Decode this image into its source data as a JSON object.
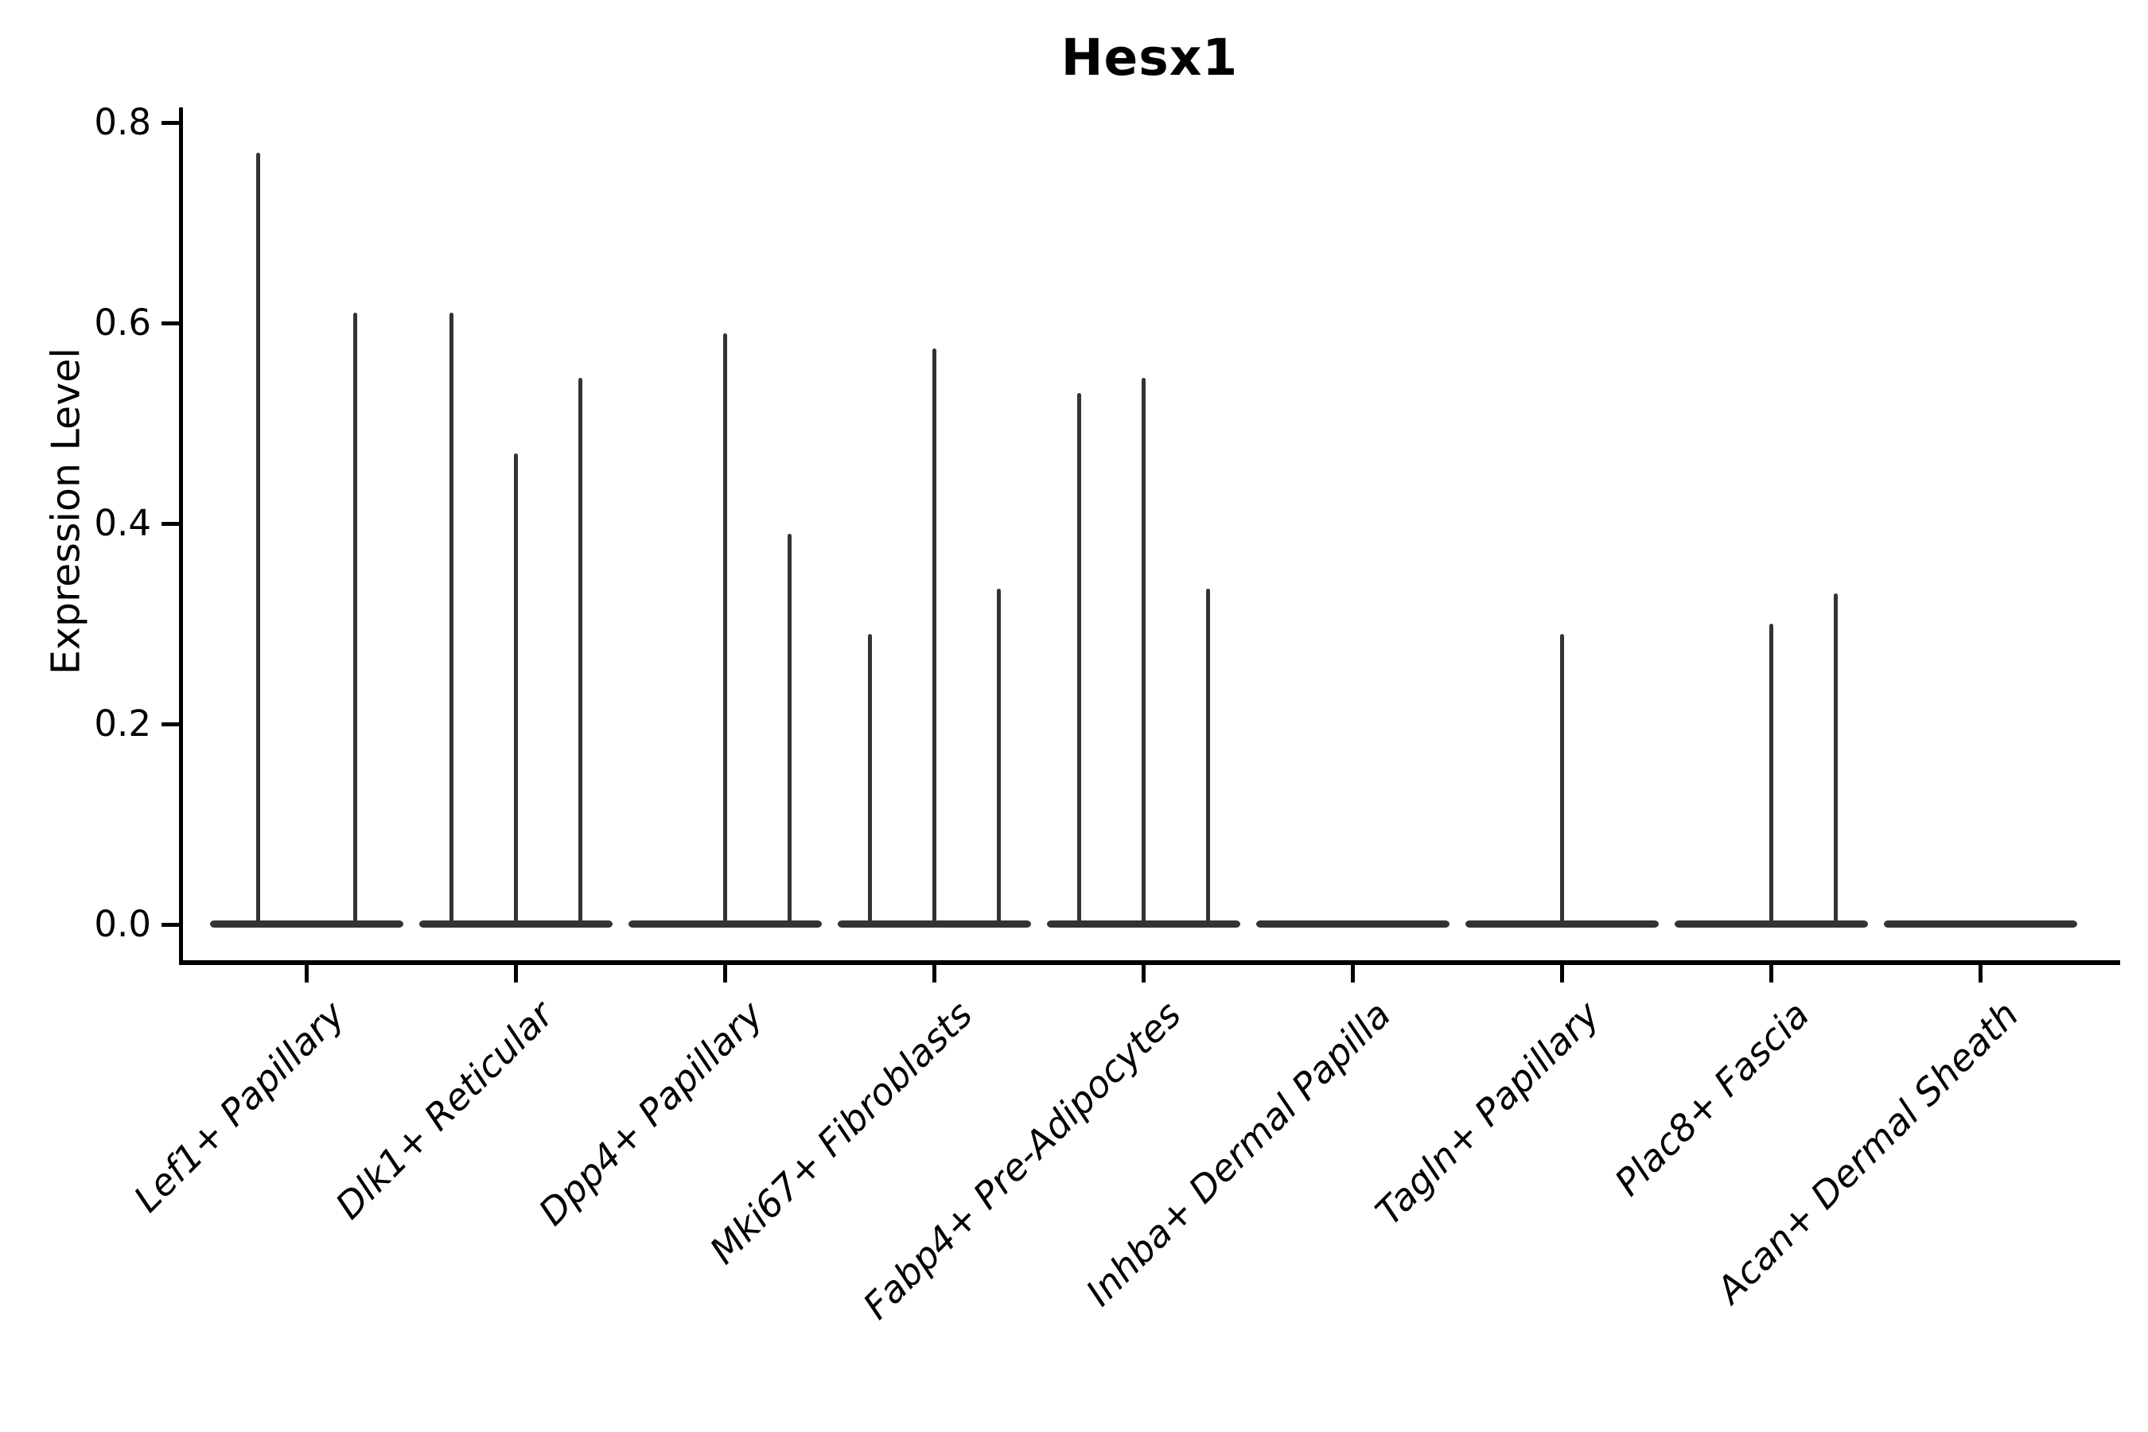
{
  "chart_data": {
    "type": "violin",
    "title": "Hesx1",
    "ylabel": "Expression Level",
    "ylim": [
      0,
      0.8
    ],
    "yticks": [
      0.0,
      0.2,
      0.4,
      0.6,
      0.8
    ],
    "grid": false,
    "legend": "none",
    "categories": [
      "Lef1+ Papillary",
      "Dlk1+ Reticular",
      "Dpp4+ Papillary",
      "Mki67+ Fibroblasts",
      "Fabp4+ Pre-Adipocytes",
      "Inhba+ Dermal Papilla",
      "Tagln+ Papillary",
      "Plac8+ Fascia",
      "Acan+ Dermal Sheath"
    ],
    "groups": [
      {
        "label": "Lef1+ Papillary",
        "spikes": [
          {
            "dx": -61,
            "value": 0.77
          },
          {
            "dx": 61,
            "value": 0.61
          }
        ]
      },
      {
        "label": "Dlk1+ Reticular",
        "spikes": [
          {
            "dx": -81,
            "value": 0.61
          },
          {
            "dx": 0,
            "value": 0.47
          },
          {
            "dx": 81,
            "value": 0.545
          }
        ]
      },
      {
        "label": "Dpp4+ Papillary",
        "spikes": [
          {
            "dx": 0,
            "value": 0.59
          },
          {
            "dx": 81,
            "value": 0.39
          }
        ]
      },
      {
        "label": "Mki67+ Fibroblasts",
        "spikes": [
          {
            "dx": -81,
            "value": 0.29
          },
          {
            "dx": 0,
            "value": 0.575
          },
          {
            "dx": 81,
            "value": 0.335
          }
        ]
      },
      {
        "label": "Fabp4+ Pre-Adipocytes",
        "spikes": [
          {
            "dx": -81,
            "value": 0.53
          },
          {
            "dx": 0,
            "value": 0.545
          },
          {
            "dx": 81,
            "value": 0.335
          }
        ]
      },
      {
        "label": "Inhba+ Dermal Papilla",
        "spikes": []
      },
      {
        "label": "Tagln+ Papillary",
        "spikes": [
          {
            "dx": 0,
            "value": 0.29
          }
        ]
      },
      {
        "label": "Plac8+ Fascia",
        "spikes": [
          {
            "dx": 0,
            "value": 0.3
          },
          {
            "dx": 81,
            "value": 0.33
          }
        ]
      },
      {
        "label": "Acan+ Dermal Sheath",
        "spikes": []
      }
    ],
    "colors": {
      "violin": "#333333",
      "axis": "#000000",
      "background": "#ffffff"
    }
  }
}
